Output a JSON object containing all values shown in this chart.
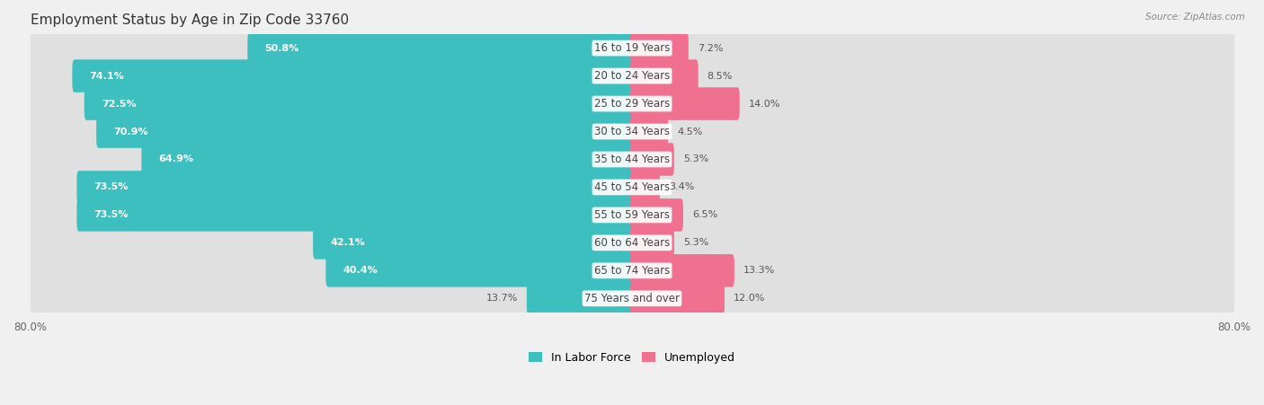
{
  "title": "Employment Status by Age in Zip Code 33760",
  "source": "Source: ZipAtlas.com",
  "categories": [
    "16 to 19 Years",
    "20 to 24 Years",
    "25 to 29 Years",
    "30 to 34 Years",
    "35 to 44 Years",
    "45 to 54 Years",
    "55 to 59 Years",
    "60 to 64 Years",
    "65 to 74 Years",
    "75 Years and over"
  ],
  "in_labor_force": [
    50.8,
    74.1,
    72.5,
    70.9,
    64.9,
    73.5,
    73.5,
    42.1,
    40.4,
    13.7
  ],
  "unemployed": [
    7.2,
    8.5,
    14.0,
    4.5,
    5.3,
    3.4,
    6.5,
    5.3,
    13.3,
    12.0
  ],
  "axis_min": -80.0,
  "axis_max": 80.0,
  "labor_color": "#3dbfbf",
  "unemployed_color": "#f07090",
  "background_color": "#f0f0f0",
  "row_color_even": "#ffffff",
  "row_color_odd": "#ebebeb",
  "bar_bg_color": "#e0e0e0",
  "title_fontsize": 11,
  "label_fontsize": 8.5,
  "pct_fontsize": 8,
  "axis_label_fontsize": 8.5,
  "legend_fontsize": 9
}
